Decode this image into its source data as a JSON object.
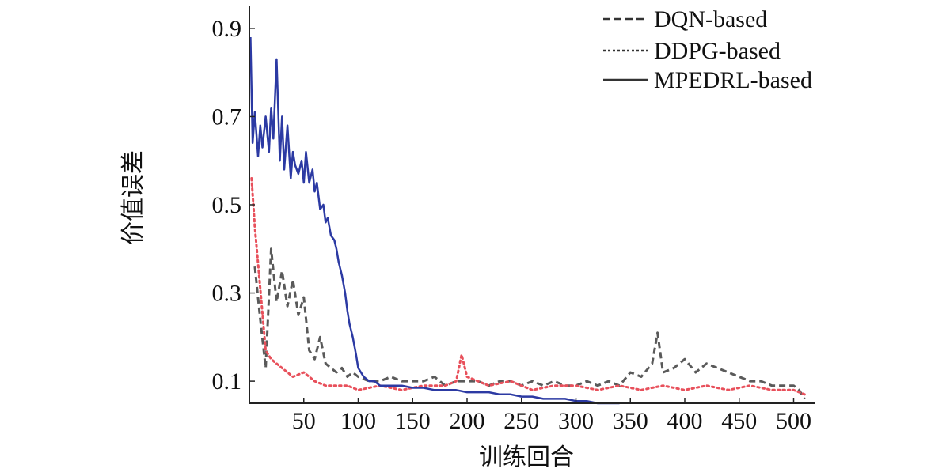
{
  "chart_data": {
    "type": "line",
    "xlabel": "训练回合",
    "ylabel": "价值误差",
    "xlim": [
      0,
      520
    ],
    "ylim": [
      0.05,
      0.95
    ],
    "xticks": [
      50,
      100,
      150,
      200,
      250,
      300,
      350,
      400,
      450,
      500
    ],
    "yticks": [
      0.1,
      0.3,
      0.5,
      0.7,
      0.9
    ],
    "xtick_labels": [
      "50",
      "100",
      "150",
      "200",
      "250",
      "300",
      "350",
      "400",
      "450",
      "500"
    ],
    "ytick_labels": [
      "0.1",
      "0.3",
      "0.5",
      "0.7",
      "0.9"
    ],
    "grid": false,
    "legend_position": "top-right",
    "series": [
      {
        "name": "DQN-based",
        "style": "dashed",
        "color": "#5a5a5a",
        "x": [
          5,
          10,
          15,
          20,
          25,
          30,
          35,
          40,
          45,
          50,
          55,
          60,
          65,
          70,
          75,
          80,
          85,
          90,
          95,
          100,
          110,
          120,
          130,
          140,
          150,
          160,
          170,
          180,
          190,
          200,
          210,
          220,
          230,
          240,
          250,
          260,
          270,
          280,
          290,
          300,
          310,
          320,
          330,
          340,
          350,
          360,
          370,
          375,
          380,
          390,
          400,
          410,
          420,
          430,
          440,
          450,
          460,
          470,
          480,
          490,
          500,
          505,
          510
        ],
        "y": [
          0.36,
          0.24,
          0.13,
          0.4,
          0.28,
          0.35,
          0.27,
          0.33,
          0.25,
          0.29,
          0.17,
          0.15,
          0.2,
          0.14,
          0.13,
          0.12,
          0.13,
          0.11,
          0.12,
          0.11,
          0.1,
          0.1,
          0.11,
          0.1,
          0.1,
          0.1,
          0.11,
          0.09,
          0.1,
          0.1,
          0.1,
          0.09,
          0.1,
          0.1,
          0.09,
          0.1,
          0.09,
          0.1,
          0.09,
          0.09,
          0.1,
          0.09,
          0.1,
          0.09,
          0.12,
          0.11,
          0.14,
          0.21,
          0.12,
          0.13,
          0.15,
          0.12,
          0.14,
          0.13,
          0.12,
          0.11,
          0.1,
          0.1,
          0.09,
          0.09,
          0.09,
          0.08,
          0.06
        ]
      },
      {
        "name": "DDPG-based",
        "style": "dotted",
        "color": "#e8505b",
        "x": [
          2,
          5,
          10,
          15,
          20,
          30,
          40,
          50,
          60,
          70,
          80,
          90,
          100,
          120,
          140,
          160,
          180,
          190,
          195,
          200,
          220,
          240,
          260,
          280,
          300,
          320,
          340,
          360,
          380,
          400,
          420,
          440,
          460,
          480,
          500,
          510
        ],
        "y": [
          0.56,
          0.45,
          0.31,
          0.17,
          0.15,
          0.13,
          0.11,
          0.12,
          0.1,
          0.09,
          0.09,
          0.09,
          0.08,
          0.09,
          0.08,
          0.09,
          0.09,
          0.1,
          0.16,
          0.11,
          0.09,
          0.1,
          0.08,
          0.09,
          0.09,
          0.08,
          0.09,
          0.08,
          0.09,
          0.08,
          0.09,
          0.08,
          0.09,
          0.08,
          0.08,
          0.07
        ]
      },
      {
        "name": "MPEDRL-based",
        "style": "solid",
        "color": "#2c3aa3",
        "x": [
          1,
          3,
          5,
          8,
          10,
          12,
          15,
          18,
          20,
          22,
          25,
          28,
          30,
          32,
          35,
          38,
          40,
          42,
          45,
          48,
          50,
          52,
          55,
          58,
          60,
          62,
          65,
          68,
          70,
          72,
          75,
          78,
          80,
          82,
          85,
          88,
          90,
          92,
          95,
          98,
          100,
          105,
          110,
          115,
          120,
          130,
          140,
          150,
          160,
          170,
          180,
          190,
          200,
          210,
          220,
          230,
          240,
          250,
          260,
          270,
          280,
          290,
          300,
          310,
          320,
          330,
          340
        ],
        "y": [
          0.88,
          0.64,
          0.71,
          0.61,
          0.68,
          0.63,
          0.7,
          0.62,
          0.72,
          0.65,
          0.83,
          0.6,
          0.7,
          0.58,
          0.68,
          0.56,
          0.62,
          0.59,
          0.57,
          0.6,
          0.55,
          0.62,
          0.55,
          0.58,
          0.53,
          0.55,
          0.49,
          0.5,
          0.46,
          0.47,
          0.43,
          0.42,
          0.4,
          0.37,
          0.34,
          0.3,
          0.26,
          0.23,
          0.2,
          0.16,
          0.13,
          0.11,
          0.1,
          0.1,
          0.09,
          0.09,
          0.09,
          0.085,
          0.085,
          0.08,
          0.08,
          0.08,
          0.075,
          0.075,
          0.075,
          0.07,
          0.07,
          0.065,
          0.065,
          0.06,
          0.06,
          0.06,
          0.055,
          0.055,
          0.05,
          0.05,
          0.05
        ]
      }
    ]
  }
}
